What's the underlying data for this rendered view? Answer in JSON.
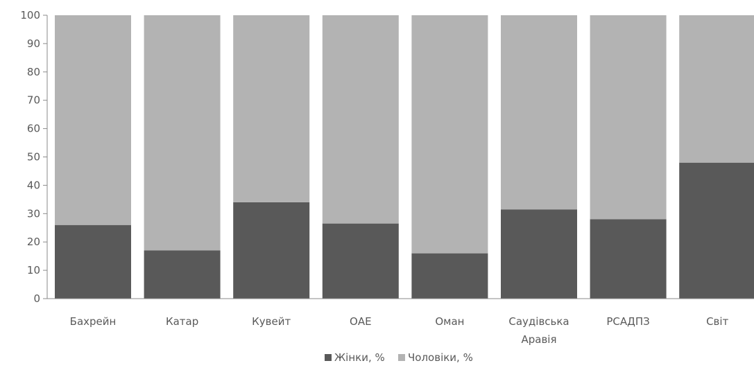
{
  "chart_data": {
    "type": "bar",
    "stacked": true,
    "categories": [
      [
        "Бахрейн"
      ],
      [
        "Катар"
      ],
      [
        "Кувейт"
      ],
      [
        "ОАЕ"
      ],
      [
        "Оман"
      ],
      [
        "Саудівська",
        "Аравія"
      ],
      [
        "РСАДПЗ"
      ],
      [
        "Світ"
      ]
    ],
    "series": [
      {
        "name": "Жінки, %",
        "color": "#595959",
        "values": [
          26,
          17,
          34,
          26.5,
          16,
          31.5,
          28,
          48
        ]
      },
      {
        "name": "Чоловіки, %",
        "color": "#b3b3b3",
        "values": [
          74,
          83,
          66,
          73.5,
          84,
          68.5,
          72,
          52
        ]
      }
    ],
    "ylim": [
      0,
      100
    ],
    "yticks": [
      0,
      10,
      20,
      30,
      40,
      50,
      60,
      70,
      80,
      90,
      100
    ],
    "grid": false,
    "legend_position": "bottom-center"
  }
}
